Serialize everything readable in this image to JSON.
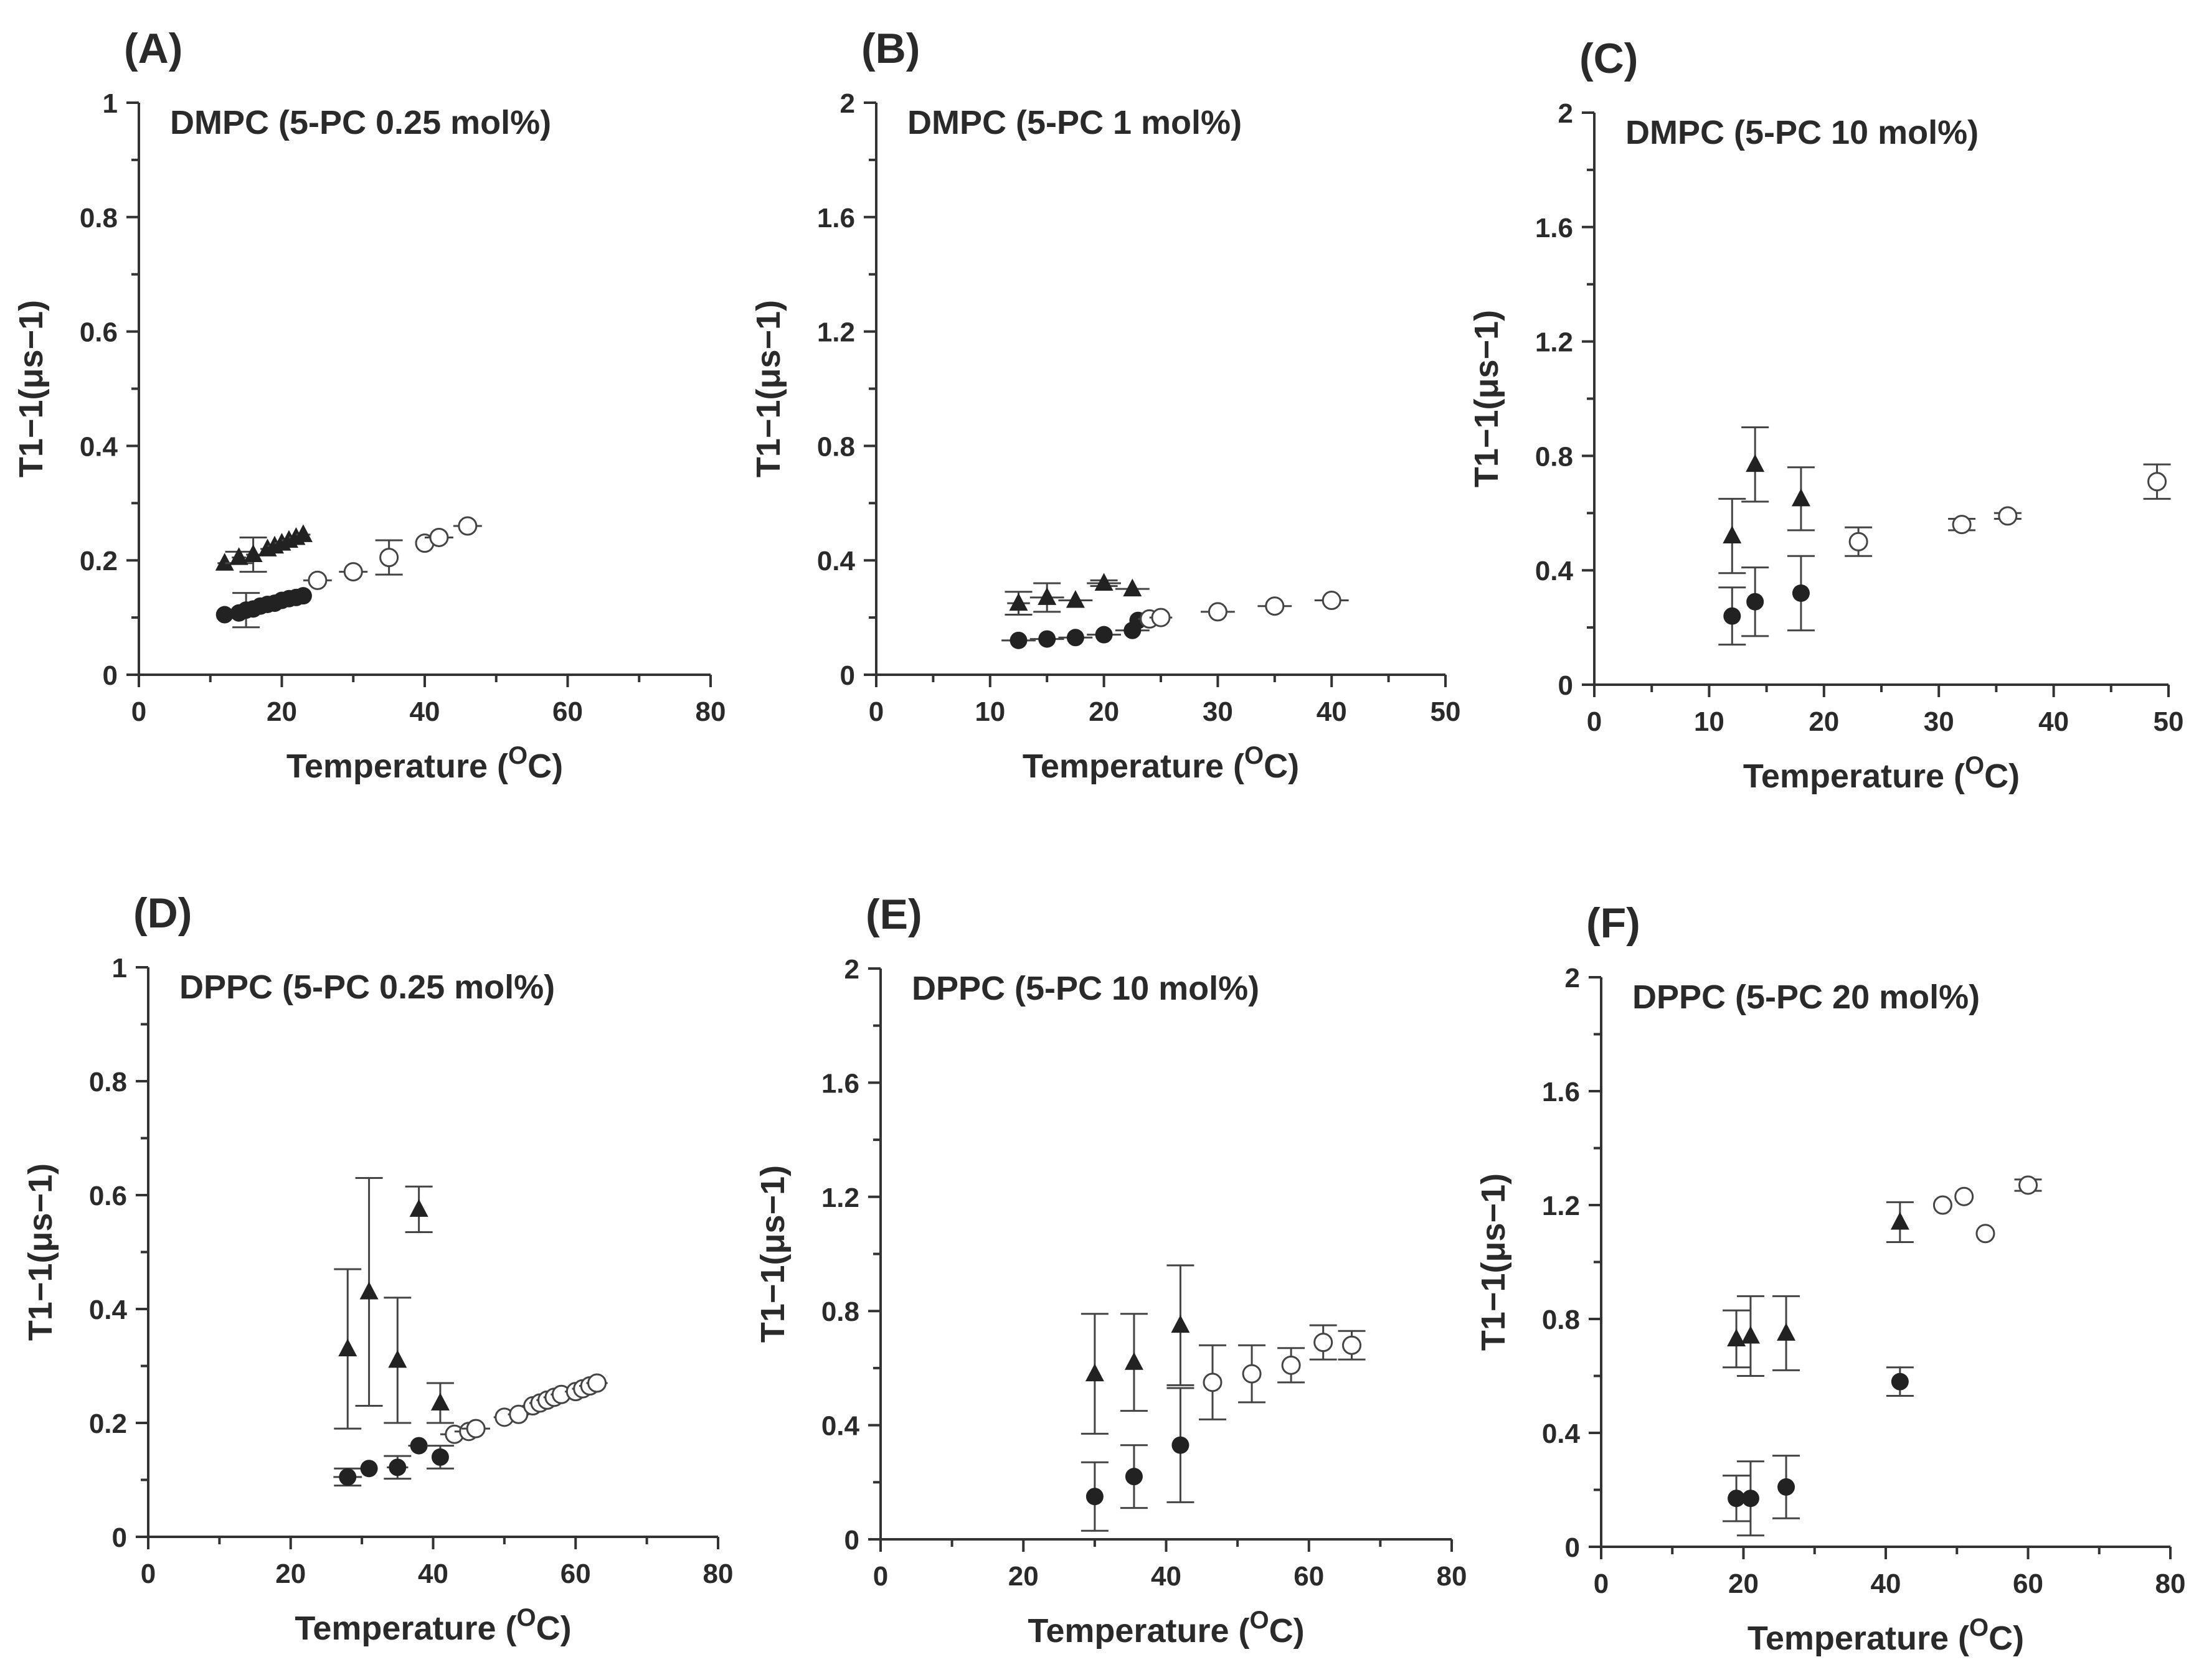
{
  "chart_data": [
    {
      "type": "scatter",
      "panel_label": "(A)",
      "title": "DMPC (5-PC 0.25 mol%)",
      "xlabel": "Temperature (oC)",
      "xlabel_main": "Temperature (",
      "xlabel_sup": "O",
      "xlabel_end": "C)",
      "ylabel": "T1−1(μs−1)",
      "xlim": [
        0,
        80
      ],
      "ylim": [
        0,
        1
      ],
      "xticks": [
        0,
        20,
        40,
        60,
        80
      ],
      "xtick_labels": [
        "0",
        "20",
        "40",
        "60",
        "80"
      ],
      "yticks": [
        0,
        0.2,
        0.4,
        0.6,
        0.8,
        1
      ],
      "ytick_labels": [
        "0",
        "0.2",
        "0.4",
        "0.6",
        "0.8",
        "1"
      ],
      "series": [
        {
          "name": "triangles",
          "marker": "triangle",
          "x": [
            12,
            14,
            16,
            18,
            19,
            20,
            21,
            22,
            23
          ],
          "y": [
            0.195,
            0.205,
            0.21,
            0.22,
            0.225,
            0.23,
            0.235,
            0.24,
            0.245
          ],
          "yerr": [
            0,
            0.01,
            0.03,
            0,
            0,
            0,
            0,
            0,
            0
          ],
          "xerr": [
            1,
            1,
            1,
            1,
            1,
            1,
            1,
            1,
            1
          ]
        },
        {
          "name": "filled circles",
          "marker": "circle",
          "x": [
            12,
            14,
            15,
            16,
            17,
            18,
            19,
            20,
            21,
            22,
            23
          ],
          "y": [
            0.105,
            0.108,
            0.113,
            0.115,
            0.12,
            0.123,
            0.125,
            0.13,
            0.133,
            0.135,
            0.138
          ],
          "yerr": [
            0,
            0,
            0.03,
            0,
            0,
            0,
            0,
            0,
            0,
            0,
            0
          ],
          "xerr": [
            1,
            1,
            1,
            1,
            1,
            1,
            1,
            1,
            1,
            1,
            1
          ]
        },
        {
          "name": "open circles",
          "marker": "open-circle",
          "x": [
            25,
            30,
            35,
            40,
            42,
            46
          ],
          "y": [
            0.165,
            0.18,
            0.205,
            0.23,
            0.24,
            0.26
          ],
          "yerr": [
            0,
            0,
            0.03,
            0,
            0,
            0
          ],
          "xerr": [
            2,
            2,
            0,
            1,
            2,
            2
          ]
        }
      ]
    },
    {
      "type": "scatter",
      "panel_label": "(B)",
      "title": "DMPC (5-PC 1 mol%)",
      "xlabel": "Temperature (oC)",
      "xlabel_main": "Temperature (",
      "xlabel_sup": "O",
      "xlabel_end": "C)",
      "ylabel": "T1−1(μs−1)",
      "xlim": [
        0,
        50
      ],
      "ylim": [
        0,
        2
      ],
      "xticks": [
        0,
        10,
        20,
        30,
        40,
        50
      ],
      "xtick_labels": [
        "0",
        "10",
        "20",
        "30",
        "40",
        "50"
      ],
      "yticks": [
        0,
        0.4,
        0.8,
        1.2,
        1.6,
        2
      ],
      "ytick_labels": [
        "0",
        "0.4",
        "0.8",
        "1.2",
        "1.6",
        "2"
      ],
      "series": [
        {
          "name": "triangles",
          "marker": "triangle",
          "x": [
            12.5,
            15,
            17.5,
            20,
            22.5
          ],
          "y": [
            0.25,
            0.27,
            0.26,
            0.32,
            0.3
          ],
          "yerr": [
            0.04,
            0.05,
            0,
            0.01,
            0
          ],
          "xerr": [
            1,
            1.5,
            1.5,
            1.5,
            1.5
          ]
        },
        {
          "name": "filled circles",
          "marker": "circle",
          "x": [
            12.5,
            15,
            17.5,
            20,
            22.5,
            23
          ],
          "y": [
            0.12,
            0.125,
            0.13,
            0.14,
            0.155,
            0.19
          ],
          "yerr": [
            0,
            0,
            0,
            0,
            0,
            0
          ],
          "xerr": [
            1.5,
            1.5,
            1.5,
            1.5,
            1.5,
            0.5
          ]
        },
        {
          "name": "open circles",
          "marker": "open-circle",
          "x": [
            24,
            25,
            30,
            35,
            40
          ],
          "y": [
            0.195,
            0.2,
            0.22,
            0.24,
            0.26
          ],
          "yerr": [
            0,
            0,
            0,
            0,
            0
          ],
          "xerr": [
            1,
            1,
            1.5,
            1.5,
            1.5
          ]
        }
      ]
    },
    {
      "type": "scatter",
      "panel_label": "(C)",
      "title": "DMPC (5-PC 10 mol%)",
      "xlabel": "Temperature (oC)",
      "xlabel_main": "Temperature (",
      "xlabel_sup": "O",
      "xlabel_end": "C)",
      "ylabel": "T1−1(μs−1)",
      "xlim": [
        0,
        50
      ],
      "ylim": [
        0,
        2
      ],
      "xticks": [
        0,
        10,
        20,
        30,
        40,
        50
      ],
      "xtick_labels": [
        "0",
        "10",
        "20",
        "30",
        "40",
        "50"
      ],
      "yticks": [
        0,
        0.4,
        0.8,
        1.2,
        1.6,
        2
      ],
      "ytick_labels": [
        "0",
        "0.4",
        "0.8",
        "1.2",
        "1.6",
        "2"
      ],
      "series": [
        {
          "name": "triangles",
          "marker": "triangle",
          "x": [
            12,
            14,
            18
          ],
          "y": [
            0.52,
            0.77,
            0.65
          ],
          "yerr": [
            0.13,
            0.13,
            0.11
          ],
          "xerr": [
            0,
            0,
            0
          ]
        },
        {
          "name": "filled circles",
          "marker": "circle",
          "x": [
            12,
            14,
            18
          ],
          "y": [
            0.24,
            0.29,
            0.32
          ],
          "yerr": [
            0.1,
            0.12,
            0.13
          ],
          "xerr": [
            0,
            0,
            0
          ]
        },
        {
          "name": "open circles",
          "marker": "open-circle",
          "x": [
            23,
            32,
            36,
            49
          ],
          "y": [
            0.5,
            0.56,
            0.59,
            0.71
          ],
          "yerr": [
            0.05,
            0.02,
            0.01,
            0.06
          ],
          "xerr": [
            0,
            0,
            0,
            0
          ]
        }
      ]
    },
    {
      "type": "scatter",
      "panel_label": "(D)",
      "title": "DPPC (5-PC 0.25 mol%)",
      "xlabel": "Temperature (oC)",
      "xlabel_main": "Temperature (",
      "xlabel_sup": "O",
      "xlabel_end": "C)",
      "ylabel": "T1−1(μs−1)",
      "xlim": [
        0,
        80
      ],
      "ylim": [
        0,
        1
      ],
      "xticks": [
        0,
        20,
        40,
        60,
        80
      ],
      "xtick_labels": [
        "0",
        "20",
        "40",
        "60",
        "80"
      ],
      "yticks": [
        0,
        0.2,
        0.4,
        0.6,
        0.8,
        1
      ],
      "ytick_labels": [
        "0",
        "0.2",
        "0.4",
        "0.6",
        "0.8",
        "1"
      ],
      "series": [
        {
          "name": "triangles",
          "marker": "triangle",
          "x": [
            28,
            31,
            35,
            38,
            41
          ],
          "y": [
            0.33,
            0.43,
            0.31,
            0.575,
            0.235
          ],
          "yerr": [
            0.14,
            0.2,
            0.11,
            0.04,
            0.035
          ],
          "xerr": [
            0,
            0,
            0,
            0,
            0
          ]
        },
        {
          "name": "filled circles",
          "marker": "circle",
          "x": [
            28,
            31,
            35,
            38,
            41
          ],
          "y": [
            0.105,
            0.12,
            0.122,
            0.16,
            0.14
          ],
          "yerr": [
            0.015,
            0,
            0.02,
            0,
            0.02
          ],
          "xerr": [
            2,
            1,
            1.5,
            1.5,
            1
          ]
        },
        {
          "name": "open circles",
          "marker": "open-circle",
          "x": [
            43,
            45,
            46,
            50,
            52,
            54,
            55,
            56,
            57,
            58,
            60,
            61,
            62,
            63
          ],
          "y": [
            0.18,
            0.185,
            0.19,
            0.21,
            0.215,
            0.23,
            0.235,
            0.24,
            0.245,
            0.25,
            0.255,
            0.26,
            0.265,
            0.27
          ],
          "yerr": [
            0,
            0,
            0,
            0,
            0,
            0,
            0,
            0,
            0,
            0,
            0,
            0,
            0,
            0
          ],
          "xerr": [
            2,
            2,
            2,
            1.5,
            1.5,
            1.5,
            1.5,
            1.5,
            1.5,
            1.5,
            1.5,
            1.5,
            1.5,
            1.5
          ]
        }
      ]
    },
    {
      "type": "scatter",
      "panel_label": "(E)",
      "title": "DPPC (5-PC 10 mol%)",
      "xlabel": "Temperature (oC)",
      "xlabel_main": "Temperature (",
      "xlabel_sup": "O",
      "xlabel_end": "C)",
      "ylabel": "T1−1(μs−1)",
      "xlim": [
        0,
        80
      ],
      "ylim": [
        0,
        2
      ],
      "xticks": [
        0,
        20,
        40,
        60,
        80
      ],
      "xtick_labels": [
        "0",
        "20",
        "40",
        "60",
        "80"
      ],
      "yticks": [
        0,
        0.4,
        0.8,
        1.2,
        1.6,
        2
      ],
      "ytick_labels": [
        "0",
        "0.4",
        "0.8",
        "1.2",
        "1.6",
        "2"
      ],
      "series": [
        {
          "name": "triangles",
          "marker": "triangle",
          "x": [
            30,
            35.5,
            42
          ],
          "y": [
            0.58,
            0.62,
            0.75
          ],
          "yerr": [
            0.21,
            0.17,
            0.21
          ],
          "xerr": [
            0,
            0,
            0
          ]
        },
        {
          "name": "filled circles",
          "marker": "circle",
          "x": [
            30,
            35.5,
            42
          ],
          "y": [
            0.15,
            0.22,
            0.33
          ],
          "yerr": [
            0.12,
            0.11,
            0.2
          ],
          "xerr": [
            0,
            0,
            0
          ]
        },
        {
          "name": "open circles",
          "marker": "open-circle",
          "x": [
            46.5,
            52,
            57.5,
            62,
            66
          ],
          "y": [
            0.55,
            0.58,
            0.61,
            0.69,
            0.68
          ],
          "yerr": [
            0.13,
            0.1,
            0.06,
            0.06,
            0.05
          ],
          "xerr": [
            0,
            0,
            0,
            0,
            0
          ]
        }
      ]
    },
    {
      "type": "scatter",
      "panel_label": "(F)",
      "title": "DPPC (5-PC 20 mol%)",
      "xlabel": "Temperature (oC)",
      "xlabel_main": "Temperature (",
      "xlabel_sup": "O",
      "xlabel_end": "C)",
      "ylabel": "T1−1(μs−1)",
      "xlim": [
        0,
        80
      ],
      "ylim": [
        0,
        2
      ],
      "xticks": [
        0,
        20,
        40,
        60,
        80
      ],
      "xtick_labels": [
        "0",
        "20",
        "40",
        "60",
        "80"
      ],
      "yticks": [
        0,
        0.4,
        0.8,
        1.2,
        1.6,
        2
      ],
      "ytick_labels": [
        "0",
        "0.4",
        "0.8",
        "1.2",
        "1.6",
        "2"
      ],
      "series": [
        {
          "name": "triangles",
          "marker": "triangle",
          "x": [
            19,
            21,
            26,
            42
          ],
          "y": [
            0.73,
            0.74,
            0.75,
            1.14
          ],
          "yerr": [
            0.1,
            0.14,
            0.13,
            0.07
          ],
          "xerr": [
            0,
            0,
            0,
            0
          ]
        },
        {
          "name": "filled circles",
          "marker": "circle",
          "x": [
            19,
            21,
            26,
            42
          ],
          "y": [
            0.17,
            0.17,
            0.21,
            0.58
          ],
          "yerr": [
            0.08,
            0.13,
            0.11,
            0.05
          ],
          "xerr": [
            0,
            0,
            0,
            0
          ]
        },
        {
          "name": "open circles",
          "marker": "open-circle",
          "x": [
            48,
            51,
            54,
            60
          ],
          "y": [
            1.2,
            1.23,
            1.1,
            1.27
          ],
          "yerr": [
            0,
            0,
            0,
            0.02
          ],
          "xerr": [
            0,
            0,
            0,
            0
          ]
        }
      ]
    }
  ]
}
